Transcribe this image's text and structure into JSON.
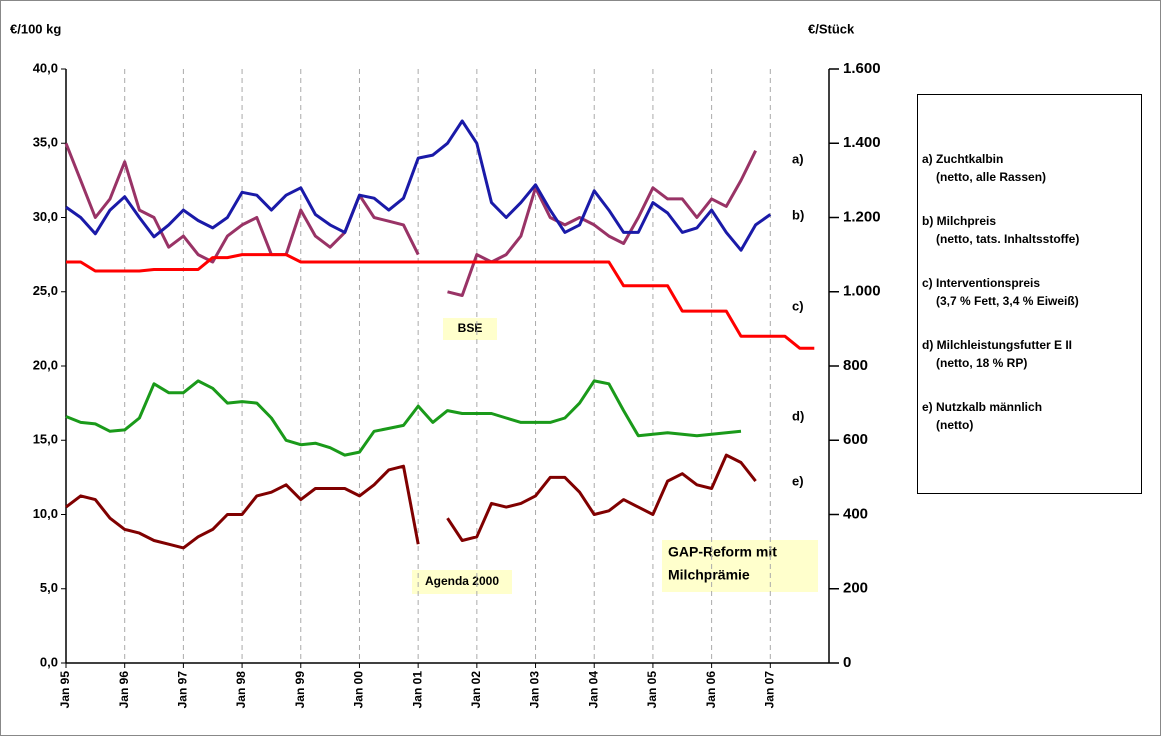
{
  "chart_data": {
    "type": "line",
    "y_label": "€/100 kg",
    "y2_label": "€/Stück",
    "categories": [
      "Jan 95",
      null,
      null,
      null,
      "Jan 96",
      null,
      null,
      null,
      "Jan 97",
      null,
      null,
      null,
      "Jan 98",
      null,
      null,
      null,
      "Jan 99",
      null,
      null,
      null,
      "Jan 00",
      null,
      null,
      null,
      "Jan 01",
      null,
      null,
      null,
      "Jan 02",
      null,
      null,
      null,
      "Jan 03",
      null,
      null,
      null,
      "Jan 04",
      null,
      null,
      null,
      "Jan 05",
      null,
      null,
      null,
      "Jan 06",
      null,
      null,
      null,
      "Jan 07",
      null,
      null,
      null
    ],
    "ylim": [
      0,
      40
    ],
    "yticks": [
      {
        "value": 0,
        "label": "0,0"
      },
      {
        "value": 5,
        "label": "5,0"
      },
      {
        "value": 10,
        "label": "10,0"
      },
      {
        "value": 15,
        "label": "15,0"
      },
      {
        "value": 20,
        "label": "20,0"
      },
      {
        "value": 25,
        "label": "25,0"
      },
      {
        "value": 30,
        "label": "30,0"
      },
      {
        "value": 35,
        "label": "35,0"
      },
      {
        "value": 40,
        "label": "40,0"
      }
    ],
    "y2lim": [
      0,
      1600
    ],
    "y2ticks": [
      0,
      200,
      400,
      600,
      800,
      {
        "value": 1000,
        "label": "1.000"
      },
      {
        "value": 1200,
        "label": "1.200"
      },
      {
        "value": 1400,
        "label": "1.400"
      },
      {
        "value": 1600,
        "label": "1.600"
      }
    ],
    "grid": "x",
    "series": [
      {
        "name": "a) Zuchtkalbin",
        "detail": "(netto, alle Rassen)",
        "short": "a)",
        "color": "#993366",
        "axis": "y2",
        "values": [
          1400,
          1300,
          1200,
          1250,
          1350,
          1220,
          1200,
          1120,
          1150,
          1100,
          1080,
          1150,
          1180,
          1200,
          1100,
          1100,
          1220,
          1150,
          1120,
          1160,
          1260,
          1200,
          1190,
          1180,
          1100,
          null,
          1000,
          990,
          1100,
          1080,
          1100,
          1150,
          1280,
          1200,
          1180,
          1200,
          1180,
          1150,
          1130,
          1200,
          1280,
          1250,
          1250,
          1200,
          1250,
          1230,
          1300,
          1380,
          null,
          null,
          null,
          null
        ]
      },
      {
        "name": "b) Milchpreis",
        "detail": "(netto, tats. Inhaltsstoffe)",
        "short": "b)",
        "color": "#1a1aa8",
        "values": [
          30.7,
          30.0,
          28.9,
          30.5,
          31.4,
          30.0,
          28.7,
          29.5,
          30.5,
          29.8,
          29.3,
          30.0,
          31.7,
          31.5,
          30.5,
          31.5,
          32.0,
          30.2,
          29.5,
          29.0,
          31.5,
          31.3,
          30.5,
          31.3,
          34.0,
          34.2,
          35.0,
          36.5,
          35.0,
          31.0,
          30.0,
          31.0,
          32.2,
          30.5,
          29.0,
          29.5,
          31.8,
          30.5,
          29.0,
          29.0,
          31.0,
          30.3,
          29.0,
          29.3,
          30.5,
          29.0,
          27.8,
          29.5,
          30.2,
          null,
          null,
          null
        ]
      },
      {
        "name": "c) Interventionspreis",
        "detail": "(3,7 % Fett, 3,4 % Eiweiß)",
        "short": "c)",
        "color": "#ff0000",
        "values": [
          27.0,
          27.0,
          26.4,
          26.4,
          26.4,
          26.4,
          26.5,
          26.5,
          26.5,
          26.5,
          27.3,
          27.3,
          27.5,
          27.5,
          27.5,
          27.5,
          27.0,
          27.0,
          27.0,
          27.0,
          27.0,
          27.0,
          27.0,
          27.0,
          27.0,
          27.0,
          27.0,
          27.0,
          27.0,
          27.0,
          27.0,
          27.0,
          27.0,
          27.0,
          27.0,
          27.0,
          27.0,
          27.0,
          25.4,
          25.4,
          25.4,
          25.4,
          23.7,
          23.7,
          23.7,
          23.7,
          22.0,
          22.0,
          22.0,
          22.0,
          21.2,
          21.2
        ]
      },
      {
        "name": "d) Milchleistungsfutter E II",
        "detail": "(netto, 18 % RP)",
        "short": "d)",
        "color": "#1a9a1a",
        "values": [
          16.6,
          16.2,
          16.1,
          15.6,
          15.7,
          16.5,
          18.8,
          18.2,
          18.2,
          19.0,
          18.5,
          17.5,
          17.6,
          17.5,
          16.5,
          15.0,
          14.7,
          14.8,
          14.5,
          14.0,
          14.2,
          15.6,
          15.8,
          16.0,
          17.3,
          16.2,
          17.0,
          16.8,
          16.8,
          16.8,
          16.5,
          16.2,
          16.2,
          16.2,
          16.5,
          17.5,
          19.0,
          18.8,
          17.0,
          15.3,
          15.4,
          15.5,
          15.4,
          15.3,
          15.4,
          15.5,
          15.6,
          null,
          null,
          null,
          null,
          null
        ]
      },
      {
        "name": "e) Nutzkalb männlich",
        "detail": "(netto)",
        "short": "e)",
        "color": "#800000",
        "axis": "y2",
        "values": [
          420,
          450,
          440,
          390,
          360,
          350,
          330,
          320,
          310,
          340,
          360,
          400,
          400,
          450,
          460,
          480,
          440,
          470,
          470,
          470,
          450,
          480,
          520,
          530,
          320,
          null,
          390,
          330,
          340,
          430,
          420,
          430,
          450,
          500,
          500,
          460,
          400,
          410,
          440,
          420,
          400,
          490,
          510,
          480,
          470,
          560,
          540,
          490,
          null,
          null,
          null,
          null
        ]
      }
    ],
    "annotations": [
      "BSE",
      "Agenda 2000",
      "GAP-Reform mit",
      "Milchprämie"
    ]
  }
}
